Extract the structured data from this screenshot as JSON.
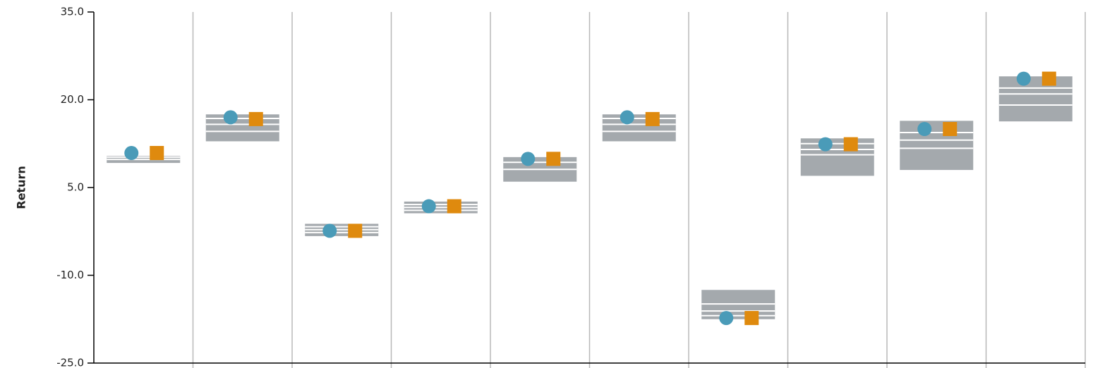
{
  "chart_data": {
    "type": "range-box",
    "title": "",
    "xlabel": "",
    "ylabel": "Return",
    "ylim": [
      -25,
      35
    ],
    "yticks": [
      "35.0",
      "20.0",
      "5.0",
      "-10.0",
      "-25.0"
    ],
    "ytick_values": [
      35,
      20,
      5,
      -10,
      -25
    ],
    "grid": "vertical",
    "colors": {
      "box": "#a4a9ad",
      "box_line": "#ffffff",
      "circle": "#4a9bb8",
      "square": "#df8a0e",
      "axis": "#000000",
      "grid": "#b8b8b8"
    },
    "groups": [
      {
        "range": [
          9.2,
          10.4
        ],
        "lines": [
          9.8,
          10.2
        ],
        "circle": 10.9,
        "square": 10.9
      },
      {
        "range": [
          12.9,
          17.5
        ],
        "lines": [
          14.6,
          15.8,
          16.8
        ],
        "circle": 17.0,
        "square": 16.7
      },
      {
        "range": [
          -3.3,
          -1.2
        ],
        "lines": [
          -1.7,
          -2.2,
          -2.7
        ],
        "circle": -2.4,
        "square": -2.4
      },
      {
        "range": [
          0.6,
          2.6
        ],
        "lines": [
          1.1,
          1.6,
          2.1
        ],
        "circle": 1.8,
        "square": 1.8
      },
      {
        "range": [
          6.0,
          10.2
        ],
        "lines": [
          8.1,
          9.3
        ],
        "circle": 9.9,
        "square": 9.9
      },
      {
        "range": [
          12.9,
          17.5
        ],
        "lines": [
          14.6,
          15.8,
          16.8
        ],
        "circle": 17.0,
        "square": 16.7
      },
      {
        "range": [
          -17.5,
          -12.5
        ],
        "lines": [
          -14.9,
          -16.1,
          -16.9
        ],
        "circle": -17.3,
        "square": -17.3
      },
      {
        "range": [
          7.0,
          13.4
        ],
        "lines": [
          10.6,
          11.5,
          12.5
        ],
        "circle": 12.4,
        "square": 12.4
      },
      {
        "range": [
          8.0,
          16.4
        ],
        "lines": [
          11.7,
          13.1,
          14.4
        ],
        "circle": 15.0,
        "square": 15.0
      },
      {
        "range": [
          16.3,
          24.0
        ],
        "lines": [
          19.1,
          21.0,
          22.0
        ],
        "circle": 23.6,
        "square": 23.6
      }
    ]
  }
}
